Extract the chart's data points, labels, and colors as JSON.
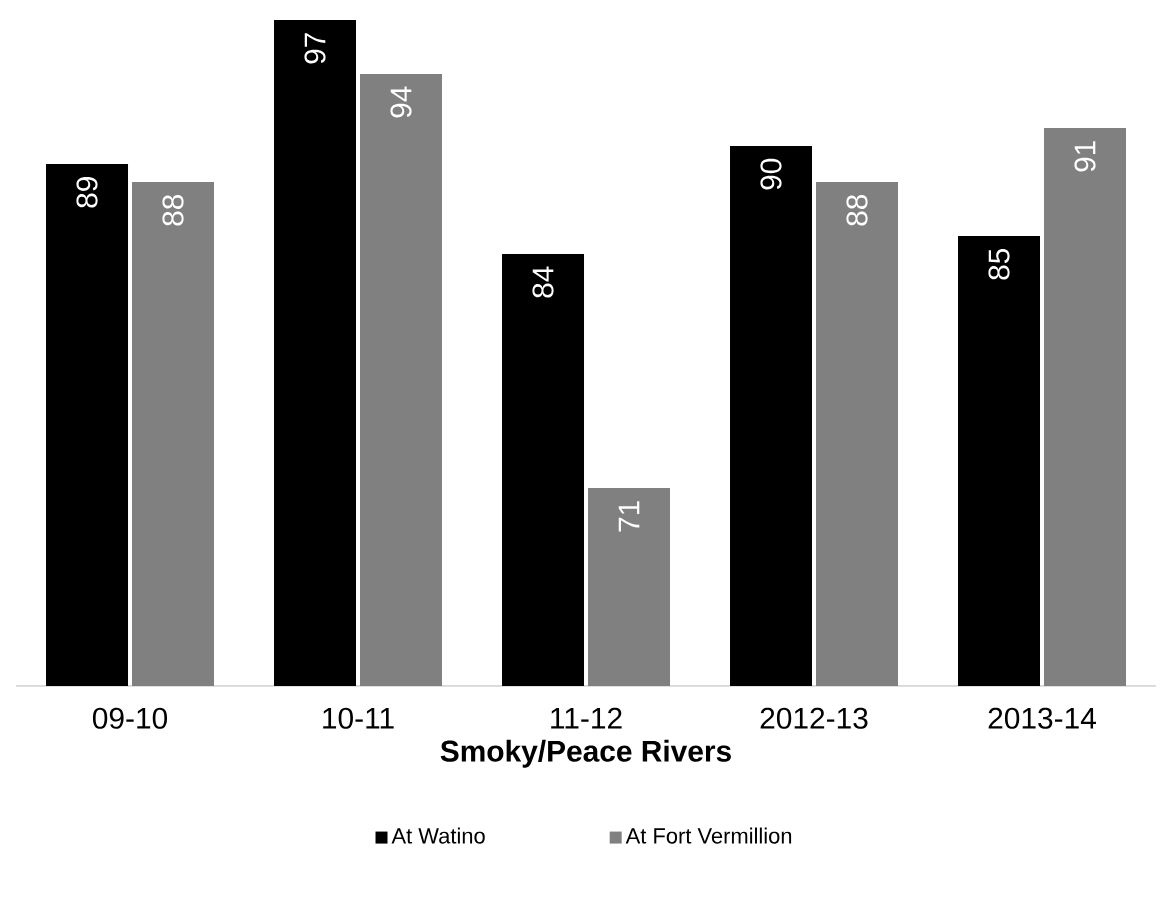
{
  "chart_data": {
    "type": "bar",
    "xlabel": "Smoky/Peace Rivers",
    "categories": [
      "09-10",
      "10-11",
      "11-12",
      "2012-13",
      "2013-14"
    ],
    "series": [
      {
        "name": "At Watino",
        "color": "#000000",
        "values": [
          89,
          97,
          84,
          90,
          85
        ]
      },
      {
        "name": "At Fort Vermillion",
        "color": "#808080",
        "values": [
          88,
          94,
          71,
          88,
          91
        ]
      }
    ],
    "ylim": [
      60,
      97
    ],
    "data_labels": true,
    "legend": "bottom",
    "tick_labels": "x",
    "grid": false
  }
}
